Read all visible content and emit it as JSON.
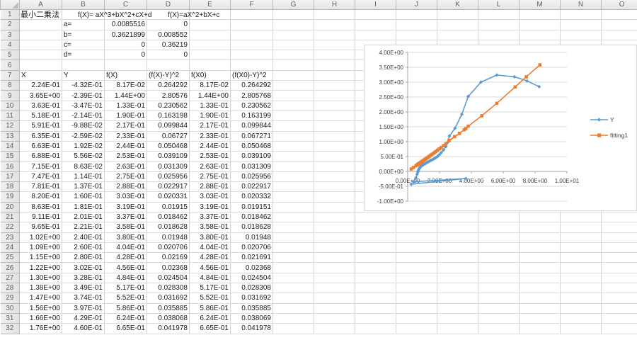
{
  "sheet": {
    "column_letters": [
      "A",
      "B",
      "C",
      "D",
      "E",
      "F",
      "G",
      "H",
      "I",
      "J",
      "K",
      "L",
      "M",
      "N",
      "O"
    ],
    "visible_row_count": 32,
    "title": "最小二乗法",
    "formula_cubic": "f(X)= aX^3+bX^2+cX+d",
    "formula_quad": "f(X)=aX^2+bX+c",
    "params": [
      {
        "row": 2,
        "label": "a=",
        "c": "0.0085516",
        "d": "0"
      },
      {
        "row": 3,
        "label": "b=",
        "c": "0.3621899",
        "d": "0.008552"
      },
      {
        "row": 4,
        "label": "c=",
        "c": "0",
        "d": "0.36219"
      },
      {
        "row": 5,
        "label": "d=",
        "c": "0",
        "d": "0"
      }
    ],
    "data_header_row": 7,
    "data_headers": [
      "X",
      "Y",
      "f(X)",
      "(f(X)-Y)^2",
      "f(X0)",
      "(f(X0)-Y)^2"
    ],
    "data_first_row": 8,
    "data_rows": [
      [
        "2.24E-01",
        "-4.32E-01",
        "8.17E-02",
        "0.264292",
        "8.17E-02",
        "0.264292"
      ],
      [
        "3.65E+00",
        "-2.39E-01",
        "1.44E+00",
        "2.80576",
        "1.44E+00",
        "2.805768"
      ],
      [
        "3.63E-01",
        "-3.47E-01",
        "1.33E-01",
        "0.230562",
        "1.33E-01",
        "0.230562"
      ],
      [
        "5.18E-01",
        "-2.14E-01",
        "1.90E-01",
        "0.163198",
        "1.90E-01",
        "0.163199"
      ],
      [
        "5.91E-01",
        "-9.88E-02",
        "2.17E-01",
        "0.099844",
        "2.17E-01",
        "0.099844"
      ],
      [
        "6.35E-01",
        "-2.59E-02",
        "2.33E-01",
        "0.06727",
        "2.33E-01",
        "0.067271"
      ],
      [
        "6.63E-01",
        "1.92E-02",
        "2.44E-01",
        "0.050468",
        "2.44E-01",
        "0.050468"
      ],
      [
        "6.88E-01",
        "5.56E-02",
        "2.53E-01",
        "0.039109",
        "2.53E-01",
        "0.039109"
      ],
      [
        "7.15E-01",
        "8.63E-02",
        "2.63E-01",
        "0.031309",
        "2.63E-01",
        "0.031309"
      ],
      [
        "7.47E-01",
        "1.14E-01",
        "2.75E-01",
        "0.025956",
        "2.75E-01",
        "0.025956"
      ],
      [
        "7.81E-01",
        "1.37E-01",
        "2.88E-01",
        "0.022917",
        "2.88E-01",
        "0.022917"
      ],
      [
        "8.20E-01",
        "1.60E-01",
        "3.03E-01",
        "0.020331",
        "3.03E-01",
        "0.020332"
      ],
      [
        "8.63E-01",
        "1.81E-01",
        "3.19E-01",
        "0.01915",
        "3.19E-01",
        "0.019151"
      ],
      [
        "9.11E-01",
        "2.01E-01",
        "3.37E-01",
        "0.018462",
        "3.37E-01",
        "0.018462"
      ],
      [
        "9.65E-01",
        "2.21E-01",
        "3.58E-01",
        "0.018628",
        "3.58E-01",
        "0.018628"
      ],
      [
        "1.02E+00",
        "2.40E-01",
        "3.80E-01",
        "0.01948",
        "3.80E-01",
        "0.01948"
      ],
      [
        "1.09E+00",
        "2.60E-01",
        "4.04E-01",
        "0.020706",
        "4.04E-01",
        "0.020706"
      ],
      [
        "1.15E+00",
        "2.80E-01",
        "4.28E-01",
        "0.02169",
        "4.28E-01",
        "0.021691"
      ],
      [
        "1.22E+00",
        "3.02E-01",
        "4.56E-01",
        "0.02368",
        "4.56E-01",
        "0.02368"
      ],
      [
        "1.30E+00",
        "3.28E-01",
        "4.84E-01",
        "0.024504",
        "4.84E-01",
        "0.024504"
      ],
      [
        "1.38E+00",
        "3.49E-01",
        "5.17E-01",
        "0.028308",
        "5.17E-01",
        "0.028308"
      ],
      [
        "1.47E+00",
        "3.74E-01",
        "5.52E-01",
        "0.031692",
        "5.52E-01",
        "0.031692"
      ],
      [
        "1.56E+00",
        "3.97E-01",
        "5.86E-01",
        "0.035885",
        "5.86E-01",
        "0.035885"
      ],
      [
        "1.66E+00",
        "4.29E-01",
        "6.24E-01",
        "0.038068",
        "6.24E-01",
        "0.038069"
      ],
      [
        "1.76E+00",
        "4.60E-01",
        "6.65E-01",
        "0.041978",
        "6.65E-01",
        "0.041978"
      ]
    ]
  },
  "chart": {
    "y_axis_labels": [
      {
        "label": "4.00E+00",
        "value": 4.0
      },
      {
        "label": "3.50E+00",
        "value": 3.5
      },
      {
        "label": "3.00E+00",
        "value": 3.0
      },
      {
        "label": "2.50E+00",
        "value": 2.5
      },
      {
        "label": "2.00E+00",
        "value": 2.0
      },
      {
        "label": "1.50E+00",
        "value": 1.5
      },
      {
        "label": "1.00E+00",
        "value": 1.0
      },
      {
        "label": "5.00E-01",
        "value": 0.5
      },
      {
        "label": "0.00E+00",
        "value": 0.0
      },
      {
        "label": "-5.00E-01",
        "value": -0.5
      },
      {
        "label": "-1.00E+00",
        "value": -1.0
      }
    ],
    "x_axis_labels": [
      {
        "label": "0.00E+00",
        "value": 0
      },
      {
        "label": "2.00E+00",
        "value": 2
      },
      {
        "label": "4.00E+00",
        "value": 4
      },
      {
        "label": "6.00E+00",
        "value": 6
      },
      {
        "label": "8.00E+00",
        "value": 8
      },
      {
        "label": "1.00E+01",
        "value": 10
      }
    ],
    "legend": [
      {
        "label": "Y",
        "color": "#5b9bd5",
        "marker": "diamond"
      },
      {
        "label": "fitting1",
        "color": "#ed7d31",
        "marker": "square"
      }
    ],
    "gridline_color": "#d9d9d9",
    "axis_color": "#a6a6a6",
    "label_color": "#404040"
  },
  "chart_data": {
    "type": "line",
    "title": "",
    "xlabel": "",
    "ylabel": "",
    "xlim": [
      0,
      10
    ],
    "ylim": [
      -1,
      4
    ],
    "grid": true,
    "legend_position": "right",
    "note": "points with x<=1.76 read from visible table rows 8-32; later points estimated from chart pixels (rows scrolled out of view)",
    "series": [
      {
        "name": "Y",
        "color": "#5b9bd5",
        "marker": "diamond",
        "points": [
          [
            0.224,
            -0.432
          ],
          [
            3.65,
            -0.239
          ],
          [
            0.363,
            -0.347
          ],
          [
            0.518,
            -0.214
          ],
          [
            0.591,
            -0.0988
          ],
          [
            0.635,
            -0.0259
          ],
          [
            0.663,
            0.0192
          ],
          [
            0.688,
            0.0556
          ],
          [
            0.715,
            0.0863
          ],
          [
            0.747,
            0.114
          ],
          [
            0.781,
            0.137
          ],
          [
            0.82,
            0.16
          ],
          [
            0.863,
            0.181
          ],
          [
            0.911,
            0.201
          ],
          [
            0.965,
            0.221
          ],
          [
            1.02,
            0.24
          ],
          [
            1.09,
            0.26
          ],
          [
            1.15,
            0.28
          ],
          [
            1.22,
            0.302
          ],
          [
            1.3,
            0.328
          ],
          [
            1.38,
            0.349
          ],
          [
            1.47,
            0.374
          ],
          [
            1.56,
            0.397
          ],
          [
            1.66,
            0.429
          ],
          [
            1.76,
            0.46
          ],
          [
            1.87,
            0.5
          ],
          [
            1.98,
            0.56
          ],
          [
            2.1,
            0.63
          ],
          [
            2.25,
            0.72
          ],
          [
            2.4,
            0.84
          ],
          [
            2.52,
            0.98
          ],
          [
            2.62,
            1.19
          ],
          [
            2.97,
            1.45
          ],
          [
            3.4,
            1.92
          ],
          [
            3.8,
            2.52
          ],
          [
            4.6,
            3.0
          ],
          [
            5.6,
            3.24
          ],
          [
            6.7,
            3.18
          ],
          [
            7.5,
            3.04
          ],
          [
            8.25,
            2.85
          ]
        ]
      },
      {
        "name": "fitting1",
        "color": "#ed7d31",
        "marker": "square",
        "points": [
          [
            0.224,
            0.0817
          ],
          [
            3.65,
            1.44
          ],
          [
            0.363,
            0.133
          ],
          [
            0.518,
            0.19
          ],
          [
            0.591,
            0.217
          ],
          [
            0.635,
            0.233
          ],
          [
            0.663,
            0.244
          ],
          [
            0.688,
            0.253
          ],
          [
            0.715,
            0.263
          ],
          [
            0.747,
            0.275
          ],
          [
            0.781,
            0.288
          ],
          [
            0.82,
            0.303
          ],
          [
            0.863,
            0.319
          ],
          [
            0.911,
            0.337
          ],
          [
            0.965,
            0.358
          ],
          [
            1.02,
            0.38
          ],
          [
            1.09,
            0.404
          ],
          [
            1.15,
            0.428
          ],
          [
            1.22,
            0.456
          ],
          [
            1.3,
            0.484
          ],
          [
            1.38,
            0.517
          ],
          [
            1.47,
            0.552
          ],
          [
            1.56,
            0.586
          ],
          [
            1.66,
            0.624
          ],
          [
            1.76,
            0.665
          ],
          [
            1.87,
            0.71
          ],
          [
            1.98,
            0.755
          ],
          [
            2.1,
            0.8
          ],
          [
            2.25,
            0.865
          ],
          [
            2.4,
            0.925
          ],
          [
            2.6,
            1.04
          ],
          [
            2.95,
            1.17
          ],
          [
            3.25,
            1.28
          ],
          [
            3.55,
            1.4
          ],
          [
            3.8,
            1.52
          ],
          [
            4.65,
            1.87
          ],
          [
            5.6,
            2.29
          ],
          [
            6.75,
            2.84
          ],
          [
            7.45,
            3.18
          ],
          [
            8.3,
            3.58
          ]
        ]
      }
    ]
  }
}
